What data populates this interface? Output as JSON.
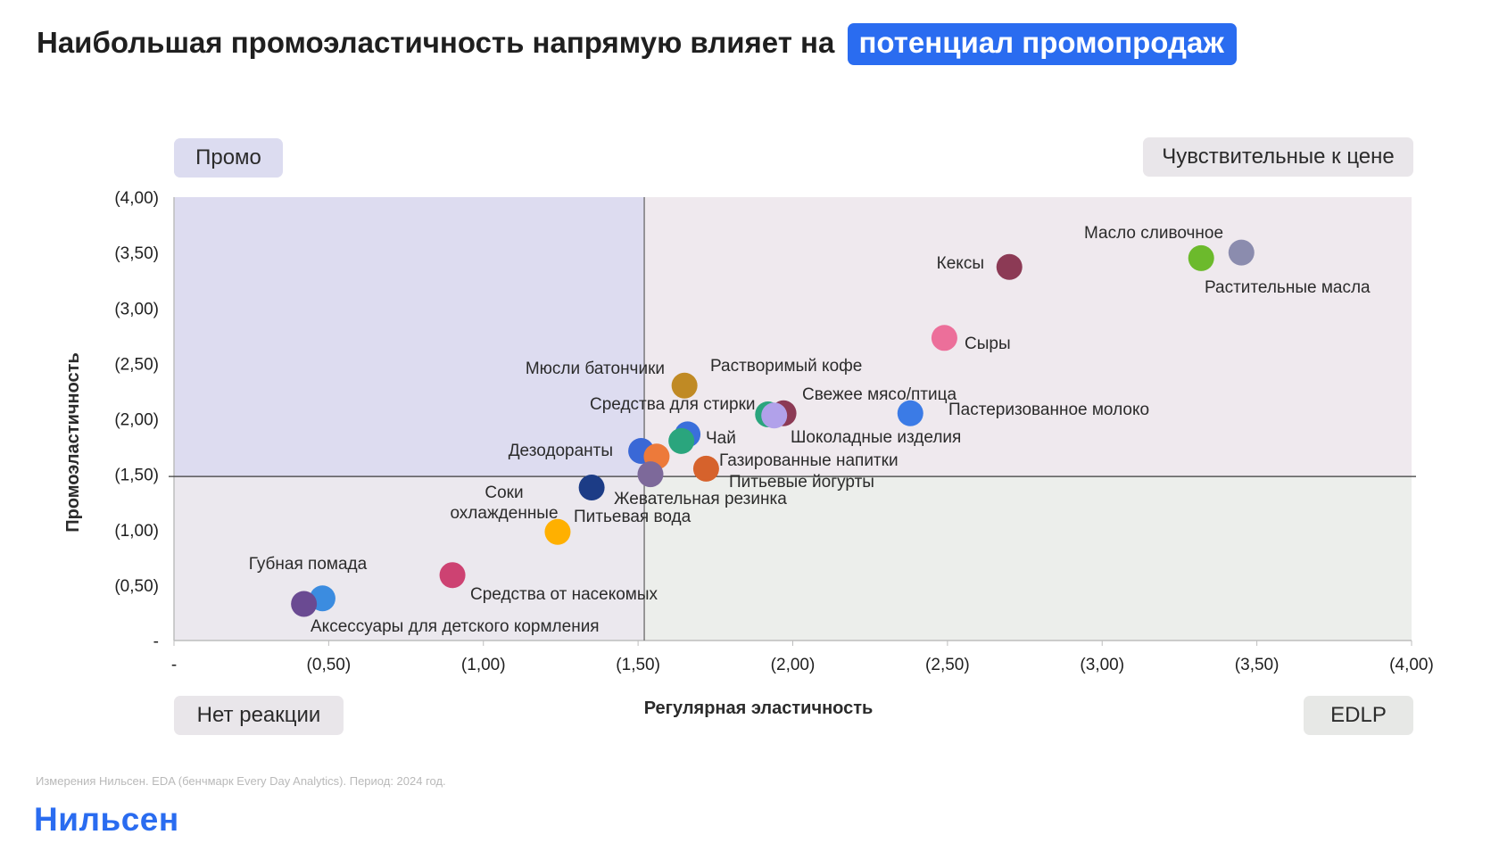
{
  "title": {
    "text": "Наибольшая промоэластичность напрямую влияет на",
    "highlight": "потенциал промопродаж",
    "highlight_color": "#2a6cf0"
  },
  "quadrants": {
    "top_left": "Промо",
    "top_right": "Чувствительные к цене",
    "bottom_left": "Нет реакции",
    "bottom_right": "EDLP",
    "colors": {
      "top_left": "#dddcf0",
      "top_right": "#efe9ee",
      "bottom_left": "#ebe8ee",
      "bottom_right": "#eceeeb"
    }
  },
  "chart_data": {
    "type": "scatter",
    "xlabel": "Регулярная эластичность",
    "ylabel": "Промоэластичность",
    "xlim": [
      0,
      4
    ],
    "ylim": [
      0,
      4
    ],
    "x_ticks": [
      "-",
      "(0,50)",
      "(1,00)",
      "(1,50)",
      "(2,00)",
      "(2,50)",
      "(3,00)",
      "(3,50)",
      "(4,00)"
    ],
    "y_ticks": [
      "-",
      "(0,50)",
      "(1,00)",
      "(1,50)",
      "(2,00)",
      "(2,50)",
      "(3,00)",
      "(3,50)",
      "(4,00)"
    ],
    "divider_x": 1.52,
    "divider_y": 1.48,
    "grid": false,
    "points": [
      {
        "label": "Масло сливочное",
        "x": 3.45,
        "y": 3.5,
        "color": "#8b8cae"
      },
      {
        "label": "Растительные масла",
        "x": 3.32,
        "y": 3.45,
        "color": "#6cba2c"
      },
      {
        "label": "Кексы",
        "x": 2.7,
        "y": 3.37,
        "color": "#8c3a55"
      },
      {
        "label": "Сыры",
        "x": 2.49,
        "y": 2.73,
        "color": "#ec6f9a"
      },
      {
        "label": "Мюсли батончики",
        "x": 1.65,
        "y": 2.3,
        "color": "#c08a24"
      },
      {
        "label": "Пастеризованное молоко",
        "x": 2.38,
        "y": 2.05,
        "color": "#3b7be6"
      },
      {
        "label": "Свежее мясо/птица",
        "x": 1.97,
        "y": 2.05,
        "color": "#8c3a55"
      },
      {
        "label": "Средства для стирки",
        "x": 1.92,
        "y": 2.04,
        "color": "#2aa57d"
      },
      {
        "label": "Шоколадные изделия",
        "x": 1.94,
        "y": 2.03,
        "color": "#b1a1ea"
      },
      {
        "label": "Чай",
        "x": 1.66,
        "y": 1.86,
        "color": "#3a6fdb"
      },
      {
        "label": "Растворимый кофе",
        "x": 1.64,
        "y": 1.8,
        "color": "#2aa57d"
      },
      {
        "label": "Дезодоранты",
        "x": 1.51,
        "y": 1.71,
        "color": "#3a68d6"
      },
      {
        "label": "Газированные напитки",
        "x": 1.56,
        "y": 1.66,
        "color": "#ed7a3a"
      },
      {
        "label": "Питьевые йогурты",
        "x": 1.72,
        "y": 1.55,
        "color": "#d6622c"
      },
      {
        "label": "Жевательная резинка",
        "x": 1.54,
        "y": 1.5,
        "color": "#7d699a"
      },
      {
        "label": "Соки охлажденные",
        "x": 1.35,
        "y": 1.38,
        "color": "#1c3c86"
      },
      {
        "label": "Питьевая вода",
        "x": 1.24,
        "y": 0.98,
        "color": "#ffb000"
      },
      {
        "label": "Средства от насекомых",
        "x": 0.9,
        "y": 0.59,
        "color": "#cd4272"
      },
      {
        "label": "Губная помада",
        "x": 0.48,
        "y": 0.38,
        "color": "#3b8ce0"
      },
      {
        "label": "Аксессуары для детского кормления",
        "x": 0.42,
        "y": 0.33,
        "color": "#6a4a92"
      }
    ]
  },
  "footnote": "Измерения Нильсен. EDA (бенчмарк Every Day Analytics). Период: 2024 год.",
  "logo": "Нильсен"
}
